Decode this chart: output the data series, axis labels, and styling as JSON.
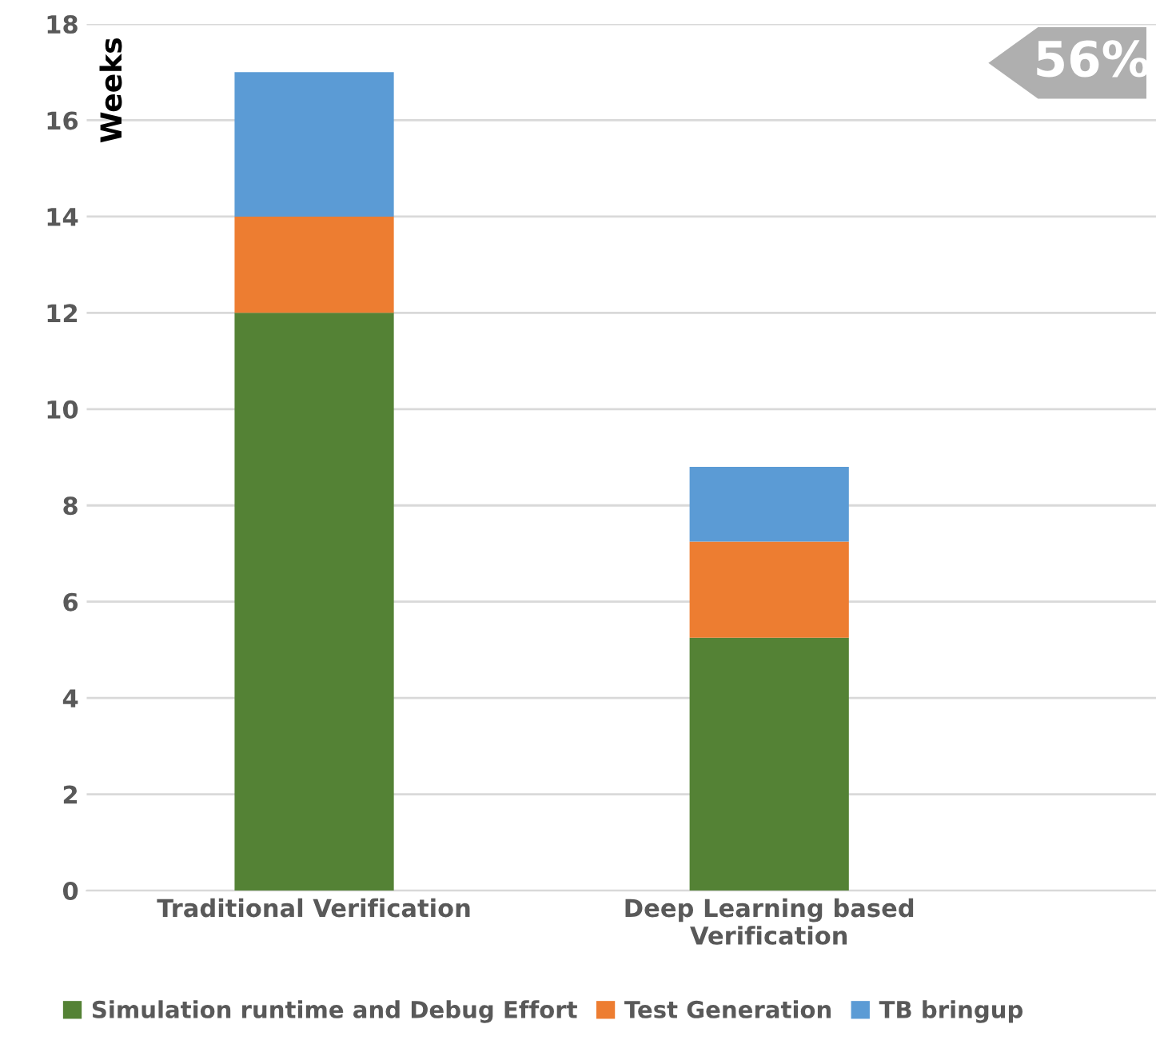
{
  "chart_data": {
    "type": "bar",
    "stacked": true,
    "ylabel": "Weeks",
    "categories": [
      "Traditional Verification",
      "Deep Learning based\nVerification"
    ],
    "series": [
      {
        "name": "Simulation runtime and Debug Effort",
        "color": "#548235",
        "values": [
          12,
          5.25
        ]
      },
      {
        "name": "Test Generation",
        "color": "#ed7d31",
        "values": [
          2,
          2
        ]
      },
      {
        "name": "TB bringup",
        "color": "#5b9bd5",
        "values": [
          3,
          1.55
        ]
      }
    ],
    "ylim": [
      0,
      18
    ],
    "yticks": [
      0,
      2,
      4,
      6,
      8,
      10,
      12,
      14,
      16,
      18
    ],
    "grid": "y",
    "legend": "bottom",
    "annotations": [
      "56%"
    ]
  }
}
